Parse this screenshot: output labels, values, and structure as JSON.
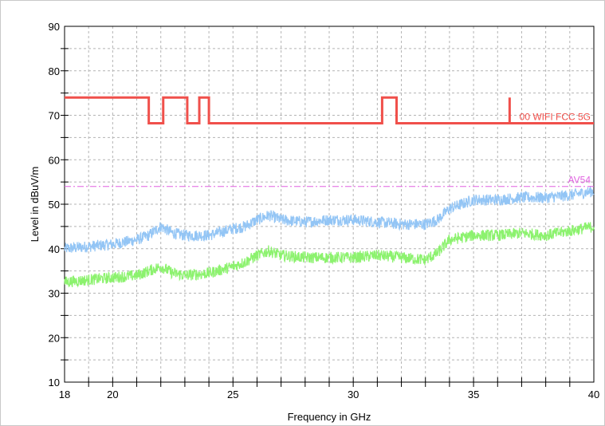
{
  "chart_data": {
    "type": "line",
    "xlabel": "Frequency in GHz",
    "ylabel": "Level in dBuV/m",
    "xlim": [
      18,
      40
    ],
    "ylim": [
      10,
      90
    ],
    "x_ticks": [
      18,
      20,
      25,
      30,
      35,
      40
    ],
    "y_ticks": [
      10,
      20,
      30,
      40,
      50,
      60,
      70,
      80,
      90
    ],
    "grid": true,
    "colors": {
      "peak_limit": "#f0504b",
      "avg_limit": "#e060e0",
      "peak_trace": "#93c5f5",
      "avg_trace": "#8cf26e",
      "grid": "#b4b4b4"
    },
    "limit_lines": [
      {
        "name": "00 WIFI FCC 5G",
        "style": "solid",
        "points": [
          [
            18,
            74
          ],
          [
            21.5,
            74
          ],
          [
            21.5,
            68.2
          ],
          [
            22.1,
            68.2
          ],
          [
            22.1,
            74
          ],
          [
            23.1,
            74
          ],
          [
            23.1,
            68.2
          ],
          [
            23.6,
            68.2
          ],
          [
            23.6,
            74
          ],
          [
            24.0,
            74
          ],
          [
            24.0,
            68.2
          ],
          [
            31.2,
            68.2
          ],
          [
            31.2,
            74
          ],
          [
            31.8,
            74
          ],
          [
            31.8,
            68.2
          ],
          [
            36.5,
            68.2
          ],
          [
            36.5,
            74
          ],
          [
            36.5,
            68.2
          ],
          [
            40,
            68.2
          ]
        ]
      },
      {
        "name": "AV54",
        "style": "dash-dot",
        "points": [
          [
            18,
            54
          ],
          [
            40,
            54
          ]
        ]
      }
    ],
    "series": [
      {
        "role": "peak_trace",
        "x": [
          18,
          19,
          20,
          21,
          21.5,
          22,
          22.5,
          23,
          24,
          25,
          25.5,
          26,
          26.5,
          27,
          28,
          29,
          30,
          31,
          32,
          33,
          33.5,
          34,
          35,
          36,
          37,
          38,
          39,
          40
        ],
        "values": [
          40,
          40.5,
          41,
          42,
          43,
          45,
          43.5,
          43,
          43,
          44.5,
          45,
          46.5,
          47.5,
          46.5,
          46,
          46.5,
          46.5,
          46,
          45.5,
          45.5,
          46.5,
          49,
          51,
          51,
          51.5,
          51.5,
          52,
          53
        ]
      },
      {
        "role": "avg_trace",
        "x": [
          18,
          19,
          20,
          21,
          21.5,
          22,
          22.5,
          23,
          24,
          25,
          25.5,
          26,
          26.5,
          27,
          28,
          29,
          30,
          31,
          32,
          33,
          33.5,
          34,
          35,
          36,
          37,
          38,
          39,
          40
        ],
        "values": [
          32.5,
          33,
          33.5,
          34,
          35,
          36,
          34.5,
          34,
          34.5,
          36,
          37,
          38.5,
          39.5,
          38.5,
          38,
          38,
          38,
          38.5,
          38,
          37.5,
          39,
          42,
          43,
          43,
          43.5,
          43,
          44,
          45
        ]
      }
    ]
  }
}
